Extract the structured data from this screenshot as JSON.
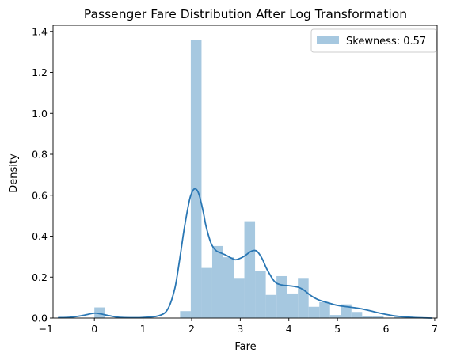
{
  "chart_data": {
    "type": "bar",
    "title": "Passenger Fare Distribution After Log Transformation",
    "xlabel": "Fare",
    "ylabel": "Density",
    "xlim": [
      -0.85,
      7.05
    ],
    "ylim": [
      0,
      1.43
    ],
    "xticks": [
      -1,
      0,
      1,
      2,
      3,
      4,
      5,
      6,
      7
    ],
    "yticks": [
      0.0,
      0.2,
      0.4,
      0.6,
      0.8,
      1.0,
      1.2,
      1.4
    ],
    "grid": false,
    "legend": {
      "position": "top-right",
      "label": "Skewness: 0.57"
    },
    "colors": {
      "histogram": "#a6c8e0",
      "kde": "#2a77b4"
    },
    "histogram": {
      "bin_edges": [
        0.0,
        0.2203,
        1.7625,
        1.9828,
        2.2032,
        2.4235,
        2.6438,
        2.8641,
        3.0844,
        3.3047,
        3.525,
        3.7453,
        3.9657,
        4.186,
        4.4063,
        4.6266,
        4.8469,
        5.0672,
        5.2875,
        5.5078,
        5.7282,
        5.9485,
        6.1688,
        6.3891
      ],
      "densities": [
        0.052,
        0.0,
        0.034,
        1.358,
        0.245,
        0.352,
        0.297,
        0.196,
        0.473,
        0.231,
        0.113,
        0.205,
        0.12,
        0.196,
        0.055,
        0.078,
        0.015,
        0.067,
        0.03,
        0.01,
        0.01,
        0.0,
        0.007
      ]
    },
    "kde": {
      "x": [
        -0.75,
        -0.5,
        -0.3,
        -0.1,
        0.0,
        0.1,
        0.3,
        0.5,
        0.8,
        1.0,
        1.3,
        1.5,
        1.65,
        1.75,
        1.85,
        1.95,
        2.0,
        2.05,
        2.1,
        2.15,
        2.2,
        2.25,
        2.3,
        2.4,
        2.5,
        2.6,
        2.7,
        2.8,
        2.9,
        3.0,
        3.1,
        3.2,
        3.28,
        3.35,
        3.45,
        3.55,
        3.7,
        3.8,
        3.9,
        4.0,
        4.1,
        4.2,
        4.3,
        4.45,
        4.6,
        4.8,
        5.0,
        5.2,
        5.5,
        5.8,
        6.0,
        6.2,
        6.5,
        6.8,
        6.95
      ],
      "y": [
        0.002,
        0.004,
        0.01,
        0.02,
        0.024,
        0.022,
        0.012,
        0.004,
        0.002,
        0.003,
        0.01,
        0.04,
        0.14,
        0.28,
        0.44,
        0.57,
        0.61,
        0.63,
        0.628,
        0.605,
        0.56,
        0.505,
        0.445,
        0.365,
        0.33,
        0.318,
        0.308,
        0.295,
        0.285,
        0.292,
        0.305,
        0.323,
        0.33,
        0.325,
        0.29,
        0.238,
        0.18,
        0.165,
        0.16,
        0.158,
        0.155,
        0.15,
        0.138,
        0.11,
        0.09,
        0.075,
        0.062,
        0.055,
        0.045,
        0.028,
        0.018,
        0.01,
        0.004,
        0.001,
        0.0
      ]
    }
  }
}
